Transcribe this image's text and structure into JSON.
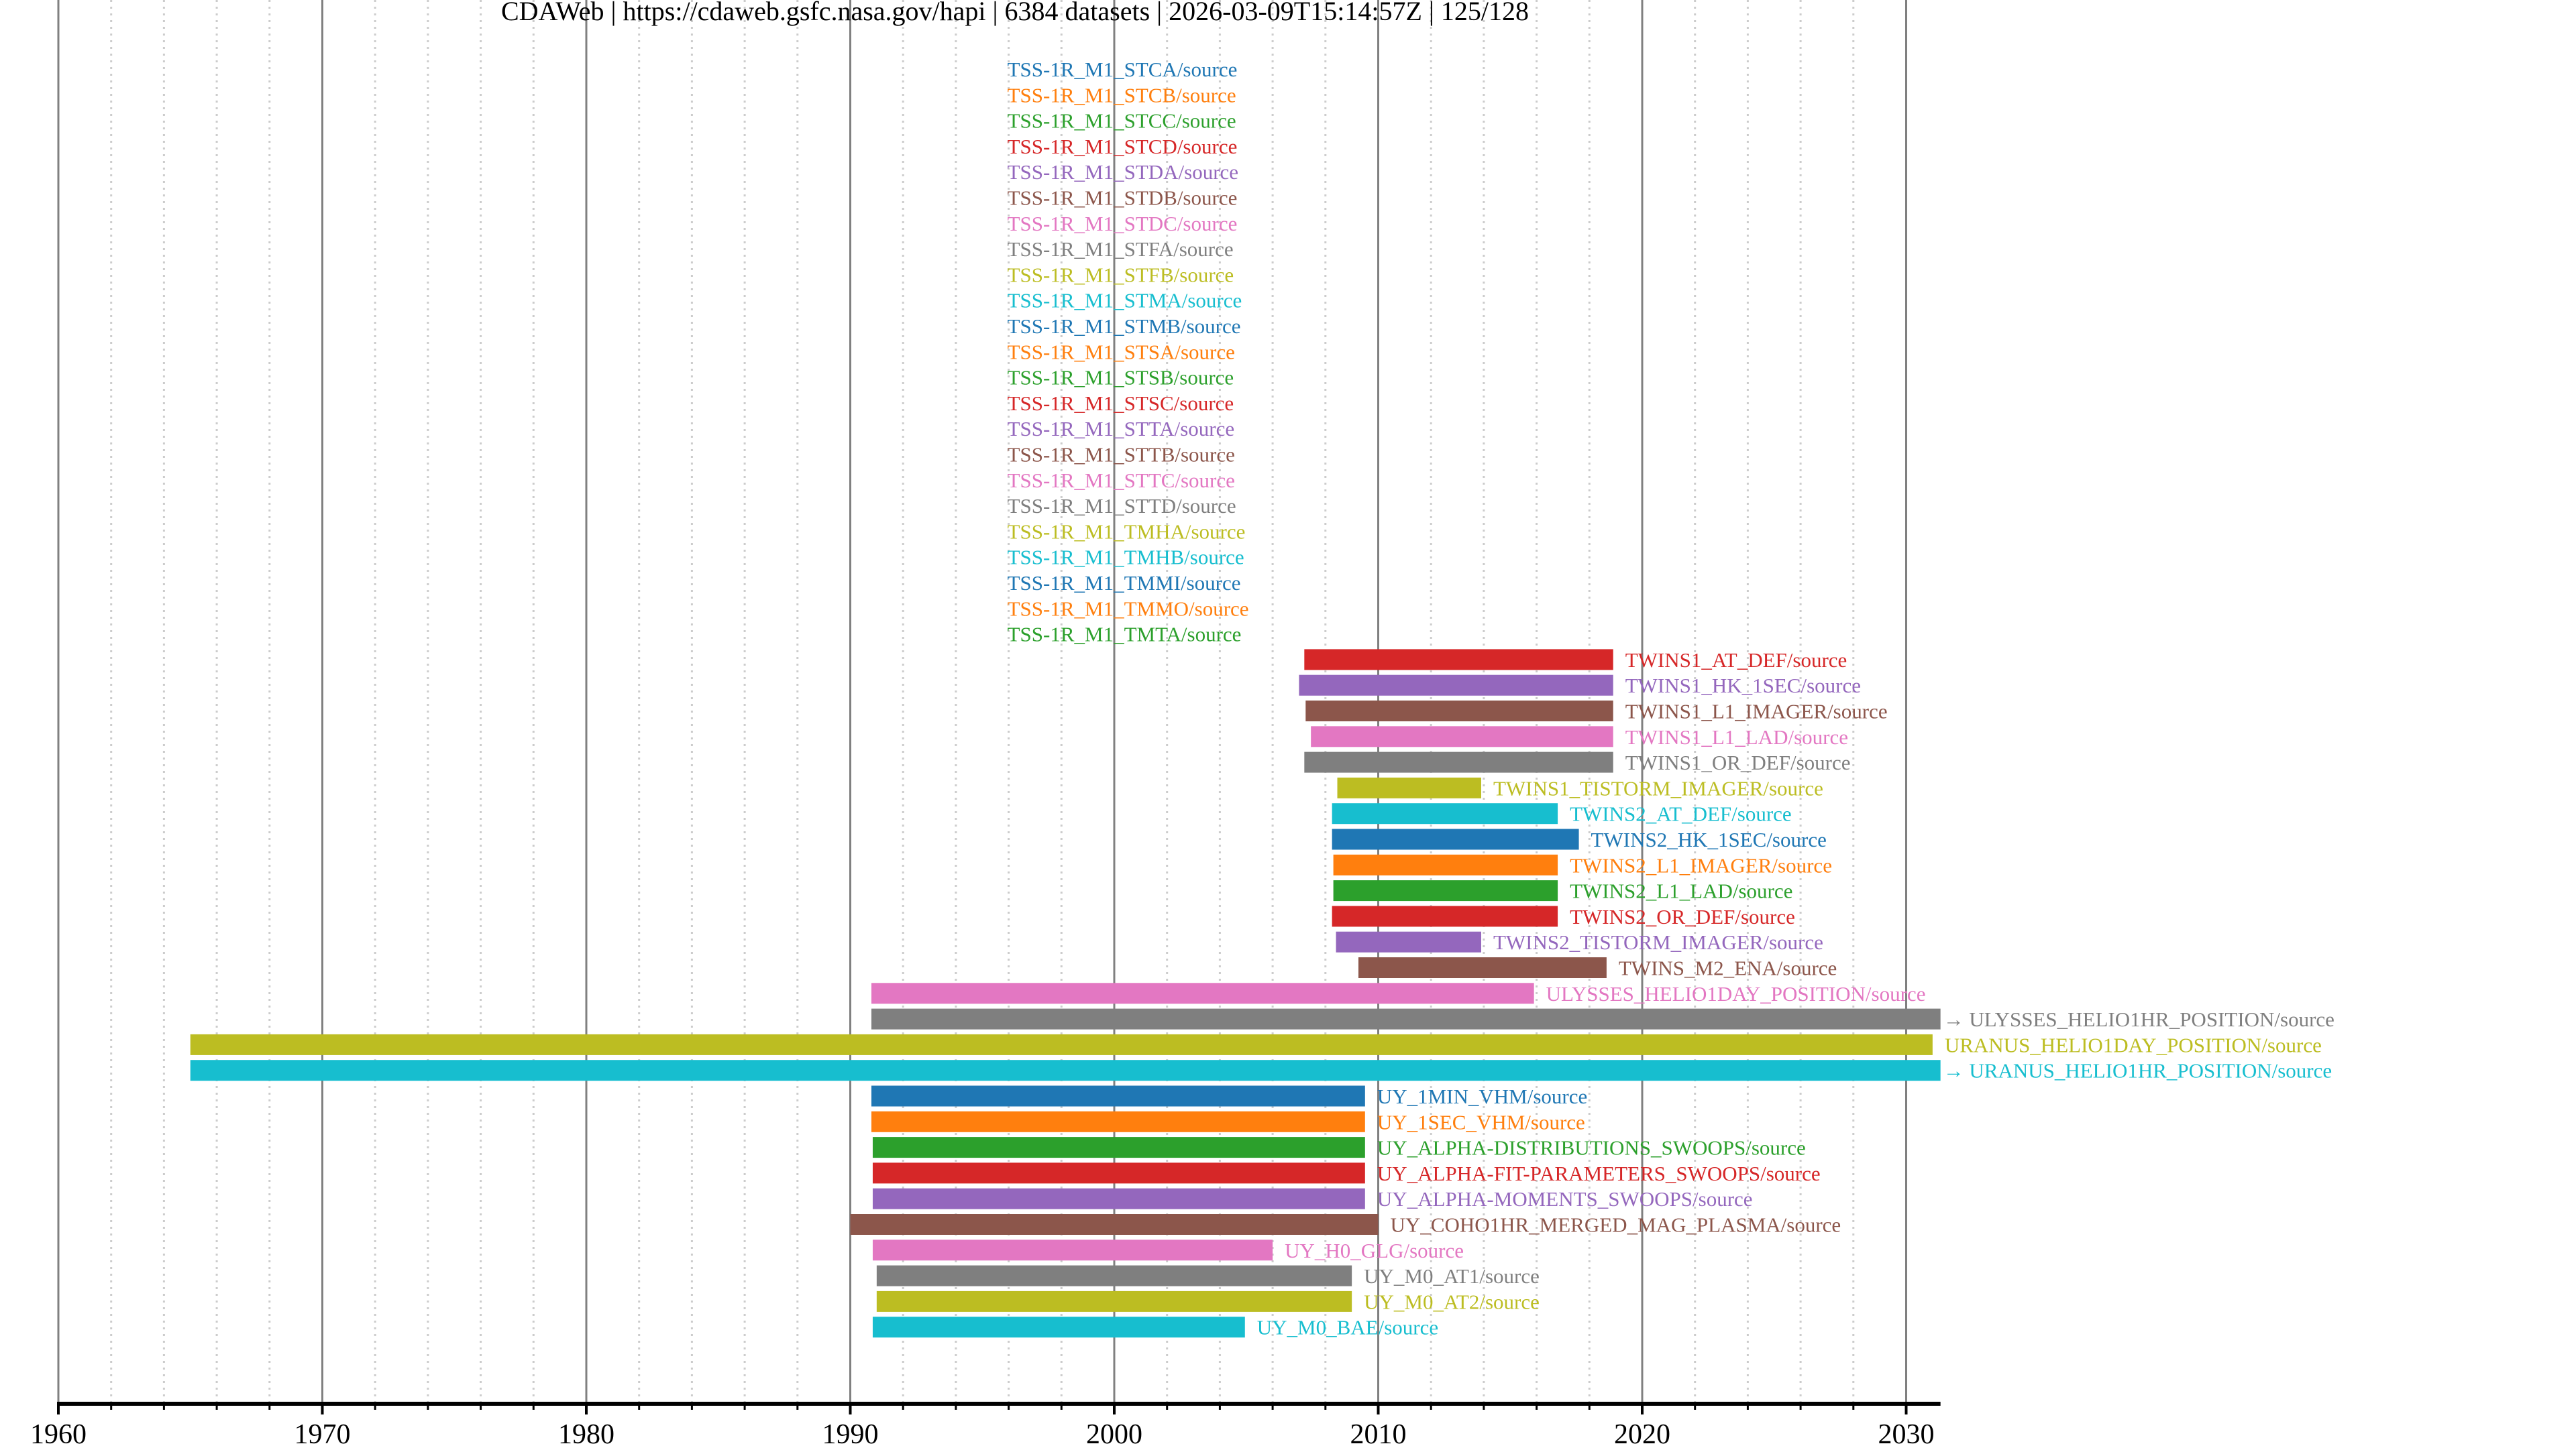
{
  "header": {
    "title_parts": [
      "CDAWeb",
      "https://cdaweb.gsfc.nasa.gov/hapi",
      "6384 datasets",
      "2026-03-09T15:14:57Z",
      "125/128"
    ],
    "separator": " | "
  },
  "colors": {
    "palette": [
      "#1f77b4",
      "#ff7f0e",
      "#2ca02c",
      "#d62728",
      "#9467bd",
      "#8c564b",
      "#e377c2",
      "#7f7f7f",
      "#bcbd22",
      "#17becf"
    ],
    "major_grid": "#808080",
    "minor_grid": "#cccccc",
    "axis": "#000000"
  },
  "chart_data": {
    "type": "timeline",
    "title": "CDAWeb | https://cdaweb.gsfc.nasa.gov/hapi | 6384 datasets | 2026-03-09T15:14:57Z | 125/128",
    "xlabel": "",
    "ylabel": "",
    "xlim": [
      1960,
      2031.3
    ],
    "x_major_ticks": [
      1960,
      1970,
      1980,
      1990,
      2000,
      2010,
      2020,
      2030
    ],
    "x_tick_labels": [
      "1960",
      "1970",
      "1980",
      "1990",
      "2000",
      "2010",
      "2020",
      "2030"
    ],
    "x_minor_step": 2,
    "grid": true,
    "series": [
      {
        "name": "TSS-1R_M1_STCA/source",
        "color_index": 0,
        "start": null,
        "stop": null
      },
      {
        "name": "TSS-1R_M1_STCB/source",
        "color_index": 1,
        "start": null,
        "stop": null
      },
      {
        "name": "TSS-1R_M1_STCC/source",
        "color_index": 2,
        "start": null,
        "stop": null
      },
      {
        "name": "TSS-1R_M1_STCD/source",
        "color_index": 3,
        "start": null,
        "stop": null
      },
      {
        "name": "TSS-1R_M1_STDA/source",
        "color_index": 4,
        "start": null,
        "stop": null
      },
      {
        "name": "TSS-1R_M1_STDB/source",
        "color_index": 5,
        "start": null,
        "stop": null
      },
      {
        "name": "TSS-1R_M1_STDC/source",
        "color_index": 6,
        "start": null,
        "stop": null
      },
      {
        "name": "TSS-1R_M1_STFA/source",
        "color_index": 7,
        "start": null,
        "stop": null
      },
      {
        "name": "TSS-1R_M1_STFB/source",
        "color_index": 8,
        "start": null,
        "stop": null
      },
      {
        "name": "TSS-1R_M1_STMA/source",
        "color_index": 9,
        "start": null,
        "stop": null
      },
      {
        "name": "TSS-1R_M1_STMB/source",
        "color_index": 0,
        "start": null,
        "stop": null
      },
      {
        "name": "TSS-1R_M1_STSA/source",
        "color_index": 1,
        "start": null,
        "stop": null
      },
      {
        "name": "TSS-1R_M1_STSB/source",
        "color_index": 2,
        "start": null,
        "stop": null
      },
      {
        "name": "TSS-1R_M1_STSC/source",
        "color_index": 3,
        "start": null,
        "stop": null
      },
      {
        "name": "TSS-1R_M1_STTA/source",
        "color_index": 4,
        "start": null,
        "stop": null
      },
      {
        "name": "TSS-1R_M1_STTB/source",
        "color_index": 5,
        "start": null,
        "stop": null
      },
      {
        "name": "TSS-1R_M1_STTC/source",
        "color_index": 6,
        "start": null,
        "stop": null
      },
      {
        "name": "TSS-1R_M1_STTD/source",
        "color_index": 7,
        "start": null,
        "stop": null
      },
      {
        "name": "TSS-1R_M1_TMHA/source",
        "color_index": 8,
        "start": null,
        "stop": null
      },
      {
        "name": "TSS-1R_M1_TMHB/source",
        "color_index": 9,
        "start": null,
        "stop": null
      },
      {
        "name": "TSS-1R_M1_TMMI/source",
        "color_index": 0,
        "start": null,
        "stop": null
      },
      {
        "name": "TSS-1R_M1_TMMO/source",
        "color_index": 1,
        "start": null,
        "stop": null
      },
      {
        "name": "TSS-1R_M1_TMTA/source",
        "color_index": 2,
        "start": null,
        "stop": null
      },
      {
        "name": "TWINS1_AT_DEF/source",
        "color_index": 3,
        "start": 2007.2,
        "stop": 2018.9
      },
      {
        "name": "TWINS1_HK_1SEC/source",
        "color_index": 4,
        "start": 2007.0,
        "stop": 2018.9
      },
      {
        "name": "TWINS1_L1_IMAGER/source",
        "color_index": 5,
        "start": 2007.25,
        "stop": 2018.9
      },
      {
        "name": "TWINS1_L1_LAD/source",
        "color_index": 6,
        "start": 2007.45,
        "stop": 2018.9
      },
      {
        "name": "TWINS1_OR_DEF/source",
        "color_index": 7,
        "start": 2007.2,
        "stop": 2018.9
      },
      {
        "name": "TWINS1_TISTORM_IMAGER/source",
        "color_index": 8,
        "start": 2008.45,
        "stop": 2013.9
      },
      {
        "name": "TWINS2_AT_DEF/source",
        "color_index": 9,
        "start": 2008.25,
        "stop": 2016.8
      },
      {
        "name": "TWINS2_HK_1SEC/source",
        "color_index": 0,
        "start": 2008.25,
        "stop": 2017.6
      },
      {
        "name": "TWINS2_L1_IMAGER/source",
        "color_index": 1,
        "start": 2008.3,
        "stop": 2016.8
      },
      {
        "name": "TWINS2_L1_LAD/source",
        "color_index": 2,
        "start": 2008.3,
        "stop": 2016.8
      },
      {
        "name": "TWINS2_OR_DEF/source",
        "color_index": 3,
        "start": 2008.25,
        "stop": 2016.8
      },
      {
        "name": "TWINS2_TISTORM_IMAGER/source",
        "color_index": 4,
        "start": 2008.4,
        "stop": 2013.9
      },
      {
        "name": "TWINS_M2_ENA/source",
        "color_index": 5,
        "start": 2009.25,
        "stop": 2018.65
      },
      {
        "name": "ULYSSES_HELIO1DAY_POSITION/source",
        "color_index": 6,
        "start": 1990.8,
        "stop": 2015.9
      },
      {
        "name": "ULYSSES_HELIO1HR_POSITION/source",
        "color_index": 7,
        "start": 1990.8,
        "stop": 2031.3,
        "continues": true
      },
      {
        "name": "URANUS_HELIO1DAY_POSITION/source",
        "color_index": 8,
        "start": 1965.0,
        "stop": 2031.0
      },
      {
        "name": "URANUS_HELIO1HR_POSITION/source",
        "color_index": 9,
        "start": 1965.0,
        "stop": 2031.3,
        "continues": true
      },
      {
        "name": "UY_1MIN_VHM/source",
        "color_index": 0,
        "start": 1990.8,
        "stop": 2009.5
      },
      {
        "name": "UY_1SEC_VHM/source",
        "color_index": 1,
        "start": 1990.8,
        "stop": 2009.5
      },
      {
        "name": "UY_ALPHA-DISTRIBUTIONS_SWOOPS/source",
        "color_index": 2,
        "start": 1990.85,
        "stop": 2009.5
      },
      {
        "name": "UY_ALPHA-FIT-PARAMETERS_SWOOPS/source",
        "color_index": 3,
        "start": 1990.85,
        "stop": 2009.5
      },
      {
        "name": "UY_ALPHA-MOMENTS_SWOOPS/source",
        "color_index": 4,
        "start": 1990.85,
        "stop": 2009.5
      },
      {
        "name": "UY_COHO1HR_MERGED_MAG_PLASMA/source",
        "color_index": 5,
        "start": 1990.0,
        "stop": 2010.0
      },
      {
        "name": "UY_H0_GLG/source",
        "color_index": 6,
        "start": 1990.85,
        "stop": 2006.0
      },
      {
        "name": "UY_M0_AT1/source",
        "color_index": 7,
        "start": 1991.0,
        "stop": 2009.0
      },
      {
        "name": "UY_M0_AT2/source",
        "color_index": 8,
        "start": 1991.0,
        "stop": 2009.0
      },
      {
        "name": "UY_M0_BAE/source",
        "color_index": 9,
        "start": 1990.85,
        "stop": 2004.95
      }
    ],
    "unbarred_label_anchor_year": 1996.0,
    "continues_arrow": "→"
  }
}
